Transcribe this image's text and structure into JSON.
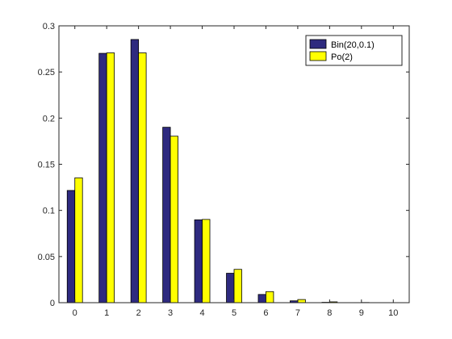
{
  "chart_data": {
    "type": "bar",
    "categories": [
      "0",
      "1",
      "2",
      "3",
      "4",
      "5",
      "6",
      "7",
      "8",
      "9",
      "10"
    ],
    "x": [
      0,
      1,
      2,
      3,
      4,
      5,
      6,
      7,
      8,
      9,
      10
    ],
    "series": [
      {
        "name": "Bin(20,0.1)",
        "color": "#2e2a7f",
        "values": [
          0.1216,
          0.2702,
          0.2852,
          0.1901,
          0.0898,
          0.0319,
          0.0089,
          0.002,
          0.0004,
          0.0001,
          0.0
        ]
      },
      {
        "name": "Po(2)",
        "color": "#ffff00",
        "values": [
          0.1353,
          0.2707,
          0.2707,
          0.1804,
          0.0902,
          0.0361,
          0.012,
          0.0034,
          0.0009,
          0.0002,
          0.0
        ]
      }
    ],
    "ylim": [
      0,
      0.3
    ],
    "yticks": [
      0,
      0.05,
      0.1,
      0.15,
      0.2,
      0.25,
      0.3
    ],
    "ytick_labels": [
      "0",
      "0.05",
      "0.1",
      "0.15",
      "0.2",
      "0.25",
      "0.3"
    ],
    "xlim": [
      -0.5,
      10.5
    ],
    "grid": false,
    "legend_position": "top-right"
  }
}
